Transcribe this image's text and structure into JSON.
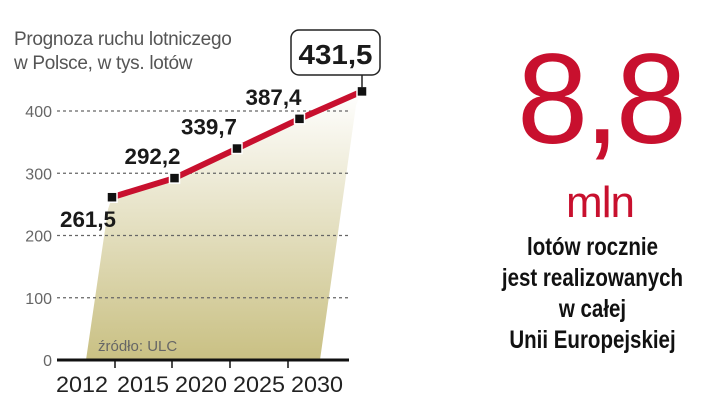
{
  "chart_data": {
    "type": "line",
    "title": "Prognoza ruchu lotniczego",
    "subtitle": "w Polsce, w tys. lotów",
    "categories": [
      "2012",
      "2015",
      "2020",
      "2025",
      "2030"
    ],
    "values": [
      261.5,
      292.2,
      339.7,
      387.4,
      431.5
    ],
    "value_labels": [
      "261,5",
      "292,2",
      "339,7",
      "387,4",
      "431,5"
    ],
    "highlighted_label": "431,5",
    "yticks": [
      "0",
      "100",
      "200",
      "300",
      "400"
    ],
    "ylim": [
      0,
      450
    ],
    "grid": true,
    "source": "źródło: ULC",
    "colors": {
      "line": "#c8102e",
      "fill": "#c9c083",
      "marker": "#111111"
    }
  },
  "stat": {
    "value": "8,8",
    "unit": "mln",
    "description": [
      "lotów rocznie",
      "jest realizowanych",
      "w całej",
      "Unii Europejskiej"
    ],
    "color": "#c8102e"
  }
}
